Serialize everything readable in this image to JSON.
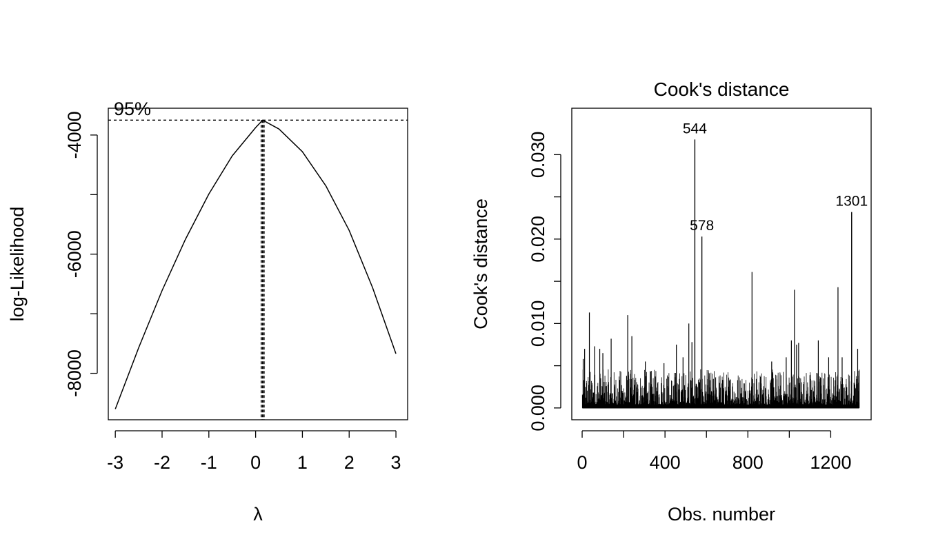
{
  "chart_data": [
    {
      "type": "line",
      "title": "",
      "xlabel": "λ",
      "ylabel": "log-Likelihood",
      "xlim": [
        -3.15,
        3.25
      ],
      "ylim": [
        -8780,
        -3550
      ],
      "xticks": [
        -3,
        -2,
        -1,
        0,
        1,
        2,
        3
      ],
      "xtick_labels": [
        "-3",
        "-2",
        "-1",
        "0",
        "1",
        "2",
        "3"
      ],
      "yticks": [
        -8000,
        -7000,
        -6000,
        -5000,
        -4000
      ],
      "ytick_labels": [
        "-8000",
        "",
        "-6000",
        "",
        "-4000"
      ],
      "x": [
        -3.0,
        -2.5,
        -2.0,
        -1.5,
        -1.0,
        -0.5,
        0.0,
        0.15,
        0.5,
        1.0,
        1.5,
        2.0,
        2.5,
        3.0
      ],
      "y": [
        -8600,
        -7570,
        -6610,
        -5750,
        -4990,
        -4350,
        -3875,
        -3750,
        -3900,
        -4280,
        -4850,
        -5600,
        -6560,
        -7670
      ],
      "ci_label": "95%",
      "ci_level_y": -3750,
      "ci_lambda": [
        0.12,
        0.18
      ],
      "grid": false,
      "legend": "none"
    },
    {
      "type": "bar",
      "title": "Cook's distance",
      "xlabel": "Obs. number",
      "ylabel": "Cook's distance",
      "xlim": [
        -50,
        1395
      ],
      "ylim": [
        -0.0014,
        0.0355
      ],
      "xticks": [
        0,
        200,
        400,
        600,
        800,
        1000,
        1200
      ],
      "xtick_labels": [
        "0",
        "",
        "400",
        "",
        "800",
        "",
        "1200"
      ],
      "yticks": [
        0.0,
        0.005,
        0.01,
        0.015,
        0.02,
        0.025,
        0.03
      ],
      "ytick_labels": [
        "0.000",
        "",
        "0.010",
        "",
        "0.020",
        "",
        "0.030"
      ],
      "n_obs": 1338,
      "baseline_note": "",
      "highlight_points": [
        {
          "x": 544,
          "y": 0.0318,
          "label": "544"
        },
        {
          "x": 578,
          "y": 0.0203,
          "label": "578"
        },
        {
          "x": 1301,
          "y": 0.0232,
          "label": "1301"
        }
      ],
      "large_points": [
        {
          "x": 5,
          "y": 0.0058
        },
        {
          "x": 12,
          "y": 0.007
        },
        {
          "x": 35,
          "y": 0.0113
        },
        {
          "x": 60,
          "y": 0.0073
        },
        {
          "x": 85,
          "y": 0.007
        },
        {
          "x": 100,
          "y": 0.0065
        },
        {
          "x": 140,
          "y": 0.0082
        },
        {
          "x": 220,
          "y": 0.011
        },
        {
          "x": 240,
          "y": 0.0085
        },
        {
          "x": 305,
          "y": 0.0055
        },
        {
          "x": 395,
          "y": 0.0053
        },
        {
          "x": 455,
          "y": 0.0075
        },
        {
          "x": 487,
          "y": 0.006
        },
        {
          "x": 515,
          "y": 0.01
        },
        {
          "x": 530,
          "y": 0.0078
        },
        {
          "x": 820,
          "y": 0.0161
        },
        {
          "x": 915,
          "y": 0.0055
        },
        {
          "x": 985,
          "y": 0.006
        },
        {
          "x": 1010,
          "y": 0.008
        },
        {
          "x": 1025,
          "y": 0.014
        },
        {
          "x": 1035,
          "y": 0.0075
        },
        {
          "x": 1045,
          "y": 0.0077
        },
        {
          "x": 1140,
          "y": 0.008
        },
        {
          "x": 1190,
          "y": 0.006
        },
        {
          "x": 1235,
          "y": 0.0143
        },
        {
          "x": 1255,
          "y": 0.006
        },
        {
          "x": 1330,
          "y": 0.007
        }
      ],
      "grid": false,
      "legend": "none"
    }
  ]
}
